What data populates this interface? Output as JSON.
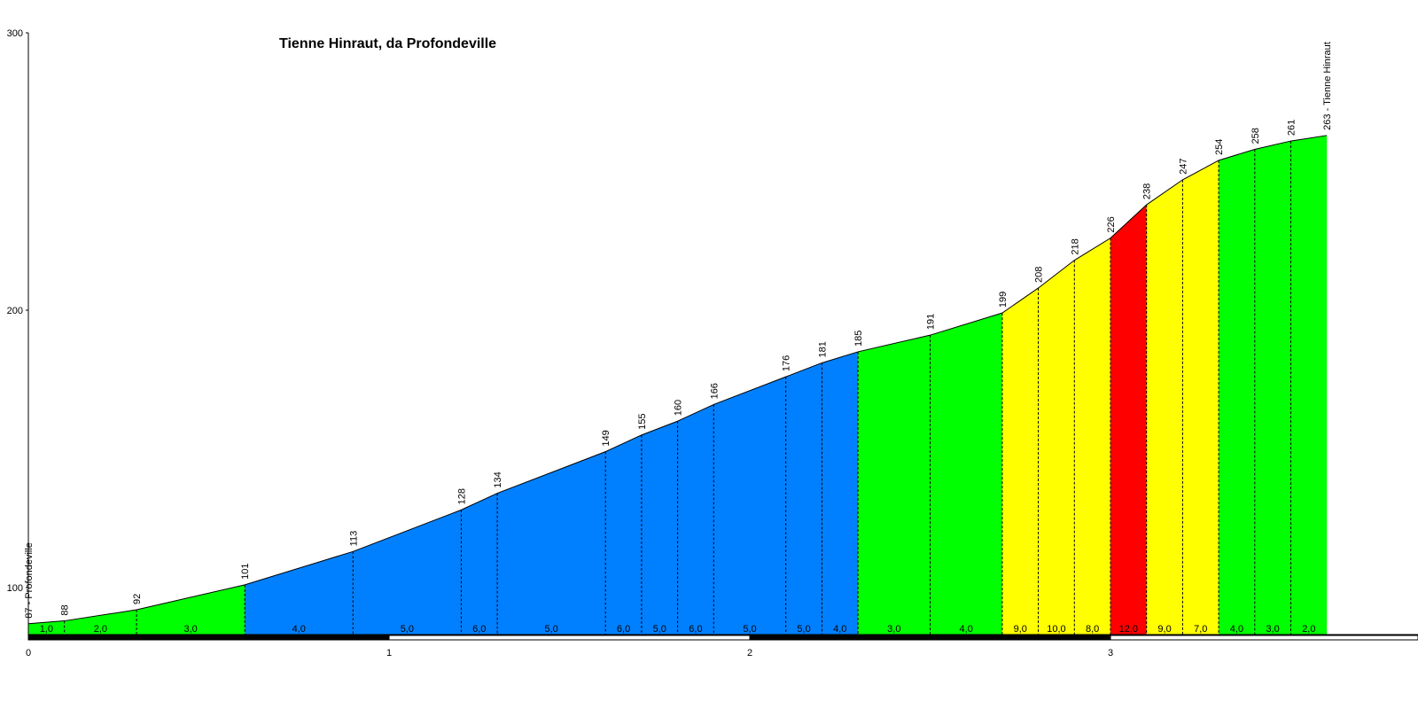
{
  "chart_data": {
    "type": "area",
    "title": "Tienne Hinraut, da Profondeville",
    "xlabel": "",
    "ylabel": "",
    "xlim": [
      0,
      3.765
    ],
    "ylim": [
      82,
      300
    ],
    "y_ticks": [
      100,
      200,
      300
    ],
    "x_ticks": [
      0,
      1,
      2,
      3
    ],
    "grid": false,
    "start_label": "87 - Profondeville",
    "end_label": "263 - Tienne Hinraut",
    "points": [
      {
        "x": 0.0,
        "y": 87
      },
      {
        "x": 0.1,
        "y": 88
      },
      {
        "x": 0.3,
        "y": 92
      },
      {
        "x": 0.6,
        "y": 101
      },
      {
        "x": 0.9,
        "y": 113
      },
      {
        "x": 1.2,
        "y": 128
      },
      {
        "x": 1.3,
        "y": 134
      },
      {
        "x": 1.6,
        "y": 149
      },
      {
        "x": 1.7,
        "y": 155
      },
      {
        "x": 1.8,
        "y": 160
      },
      {
        "x": 1.9,
        "y": 166
      },
      {
        "x": 2.1,
        "y": 176
      },
      {
        "x": 2.2,
        "y": 181
      },
      {
        "x": 2.3,
        "y": 185
      },
      {
        "x": 2.5,
        "y": 191
      },
      {
        "x": 2.7,
        "y": 199
      },
      {
        "x": 2.8,
        "y": 208
      },
      {
        "x": 2.9,
        "y": 218
      },
      {
        "x": 3.0,
        "y": 226
      },
      {
        "x": 3.1,
        "y": 238
      },
      {
        "x": 3.2,
        "y": 247
      },
      {
        "x": 3.3,
        "y": 254
      },
      {
        "x": 3.4,
        "y": 258
      },
      {
        "x": 3.5,
        "y": 261
      },
      {
        "x": 3.6,
        "y": 263
      }
    ],
    "point_labels": [
      "87 - Profondeville",
      "88",
      "92",
      "101",
      "113",
      "128",
      "134",
      "149",
      "155",
      "160",
      "166",
      "176",
      "181",
      "185",
      "191",
      "199",
      "208",
      "218",
      "226",
      "238",
      "247",
      "254",
      "258",
      "261",
      "263 - Tienne Hinraut"
    ],
    "segments": [
      {
        "from": 0.0,
        "to": 0.1,
        "gradient": "1,0",
        "color": "#00ff00"
      },
      {
        "from": 0.1,
        "to": 0.3,
        "gradient": "2,0",
        "color": "#00ff00"
      },
      {
        "from": 0.3,
        "to": 0.6,
        "gradient": "3,0",
        "color": "#00ff00"
      },
      {
        "from": 0.6,
        "to": 0.9,
        "gradient": "4,0",
        "color": "#0080ff"
      },
      {
        "from": 0.9,
        "to": 1.2,
        "gradient": "5,0",
        "color": "#0080ff"
      },
      {
        "from": 1.2,
        "to": 1.3,
        "gradient": "6,0",
        "color": "#0080ff"
      },
      {
        "from": 1.3,
        "to": 1.6,
        "gradient": "5,0",
        "color": "#0080ff"
      },
      {
        "from": 1.6,
        "to": 1.7,
        "gradient": "6,0",
        "color": "#0080ff"
      },
      {
        "from": 1.7,
        "to": 1.8,
        "gradient": "5,0",
        "color": "#0080ff"
      },
      {
        "from": 1.8,
        "to": 1.9,
        "gradient": "6,0",
        "color": "#0080ff"
      },
      {
        "from": 1.9,
        "to": 2.1,
        "gradient": "5,0",
        "color": "#0080ff"
      },
      {
        "from": 2.1,
        "to": 2.2,
        "gradient": "5,0",
        "color": "#0080ff"
      },
      {
        "from": 2.2,
        "to": 2.3,
        "gradient": "4,0",
        "color": "#0080ff"
      },
      {
        "from": 2.3,
        "to": 2.5,
        "gradient": "3,0",
        "color": "#00ff00"
      },
      {
        "from": 2.5,
        "to": 2.7,
        "gradient": "4,0",
        "color": "#00ff00"
      },
      {
        "from": 2.7,
        "to": 2.8,
        "gradient": "9,0",
        "color": "#ffff00"
      },
      {
        "from": 2.8,
        "to": 2.9,
        "gradient": "10,0",
        "color": "#ffff00"
      },
      {
        "from": 2.9,
        "to": 3.0,
        "gradient": "8,0",
        "color": "#ffff00"
      },
      {
        "from": 3.0,
        "to": 3.1,
        "gradient": "12,0",
        "color": "#ff0000"
      },
      {
        "from": 3.1,
        "to": 3.2,
        "gradient": "9,0",
        "color": "#ffff00"
      },
      {
        "from": 3.2,
        "to": 3.3,
        "gradient": "7,0",
        "color": "#ffff00"
      },
      {
        "from": 3.3,
        "to": 3.4,
        "gradient": "4,0",
        "color": "#00ff00"
      },
      {
        "from": 3.4,
        "to": 3.5,
        "gradient": "3,0",
        "color": "#00ff00"
      },
      {
        "from": 3.5,
        "to": 3.6,
        "gradient": "2,0",
        "color": "#00ff00"
      }
    ]
  }
}
